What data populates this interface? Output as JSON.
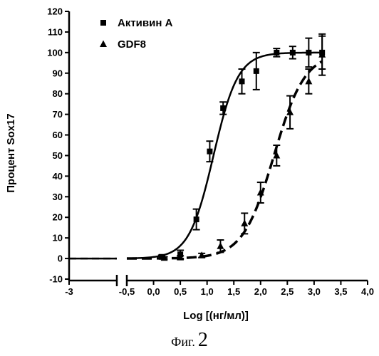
{
  "chart_data": {
    "type": "scatter",
    "xlabel": "Log [(нг/мл)]",
    "ylabel": "Процент Sox17",
    "xlim": [
      -0.5,
      4.0
    ],
    "ylim": [
      -10,
      120
    ],
    "x_break_tick": -3,
    "x_break_tick_label": "-3",
    "x_ticks": [
      -0.5,
      0.0,
      0.5,
      1.0,
      1.5,
      2.0,
      2.5,
      3.0,
      3.5,
      4.0
    ],
    "x_tick_labels": [
      "-0,5",
      "0,0",
      "0,5",
      "1,0",
      "1,5",
      "2,0",
      "2,5",
      "3,0",
      "3,5",
      "4,0"
    ],
    "y_ticks": [
      -10,
      0,
      10,
      20,
      30,
      40,
      50,
      60,
      70,
      80,
      90,
      100,
      110,
      120
    ],
    "y_tick_labels": [
      "-10",
      "0",
      "10",
      "20",
      "30",
      "40",
      "50",
      "60",
      "70",
      "80",
      "90",
      "100",
      "110",
      "120"
    ],
    "grid": false,
    "legend_position": "top-left",
    "series": [
      {
        "name": "Активин А",
        "marker": "square",
        "line_style": "solid",
        "baseline_y": 0,
        "x": [
          0.15,
          0.5,
          0.8,
          1.05,
          1.3,
          1.65,
          1.92,
          2.3,
          2.6,
          2.9,
          3.15
        ],
        "y": [
          0.8,
          2,
          19,
          52,
          73,
          86,
          91,
          100,
          100,
          100,
          100
        ],
        "err": [
          0.8,
          2,
          5,
          5,
          3,
          6,
          9,
          2,
          3,
          7,
          8
        ],
        "fit": {
          "bottom": 0,
          "top": 100,
          "logEC50": 1.12,
          "hill": 1.9
        }
      },
      {
        "name": "GDF8",
        "marker": "triangle",
        "line_style": "dashed",
        "baseline_y": 0,
        "x": [
          0.2,
          0.5,
          0.9,
          1.25,
          1.7,
          2.0,
          2.3,
          2.55,
          2.9,
          3.15
        ],
        "y": [
          0.3,
          0.5,
          1.5,
          6,
          17,
          32,
          50,
          71,
          86,
          99
        ],
        "err": [
          0.5,
          0.8,
          1,
          3,
          5,
          5,
          5,
          8,
          6,
          10
        ],
        "fit": {
          "bottom": 0,
          "top": 100,
          "logEC50": 2.25,
          "hill": 1.5
        }
      }
    ]
  },
  "figure": {
    "caption_prefix": "Фиг.",
    "caption_number": "2"
  }
}
